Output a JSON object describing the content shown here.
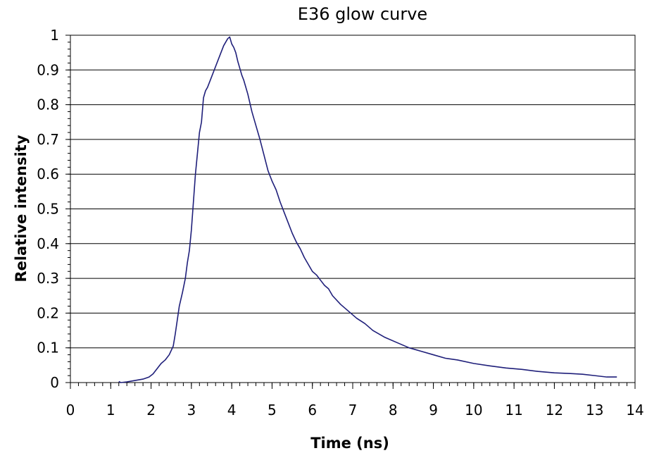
{
  "chart_data": {
    "type": "line",
    "title": "E36 glow curve",
    "xlabel": "Time (ns)",
    "ylabel": "Relative intensity",
    "xlim": [
      0,
      14
    ],
    "ylim": [
      0,
      1
    ],
    "x_ticks": [
      0,
      1,
      2,
      3,
      4,
      5,
      6,
      7,
      8,
      9,
      10,
      11,
      12,
      13,
      14
    ],
    "y_ticks": [
      0,
      0.1,
      0.2,
      0.3,
      0.4,
      0.5,
      0.6,
      0.7,
      0.8,
      0.9,
      1
    ],
    "grid": "horizontal",
    "legend": "none",
    "line_color": "#1f1f7a",
    "series": [
      {
        "x": [
          1.2,
          1.25,
          1.4,
          1.6,
          1.8,
          1.95,
          2.05,
          2.15,
          2.25,
          2.35,
          2.45,
          2.55,
          2.6,
          2.65,
          2.7,
          2.78,
          2.85,
          2.9,
          2.95,
          3.0,
          3.05,
          3.1,
          3.15,
          3.2,
          3.25,
          3.3,
          3.35,
          3.4,
          3.5,
          3.6,
          3.7,
          3.8,
          3.9,
          3.95,
          4.0,
          4.05,
          4.1,
          4.15,
          4.2,
          4.25,
          4.3,
          4.4,
          4.5,
          4.6,
          4.7,
          4.8,
          4.9,
          5.0,
          5.1,
          5.2,
          5.3,
          5.4,
          5.5,
          5.6,
          5.7,
          5.8,
          5.9,
          6.0,
          6.1,
          6.2,
          6.3,
          6.4,
          6.5,
          6.7,
          6.9,
          7.1,
          7.3,
          7.5,
          7.8,
          8.1,
          8.4,
          8.7,
          9.0,
          9.3,
          9.6,
          10.0,
          10.4,
          10.8,
          11.2,
          11.6,
          12.0,
          12.4,
          12.7,
          13.0,
          13.3,
          13.55
        ],
        "y": [
          0.003,
          0.0,
          0.002,
          0.006,
          0.01,
          0.016,
          0.025,
          0.04,
          0.055,
          0.065,
          0.08,
          0.105,
          0.14,
          0.18,
          0.22,
          0.26,
          0.3,
          0.345,
          0.38,
          0.44,
          0.52,
          0.6,
          0.66,
          0.72,
          0.75,
          0.82,
          0.84,
          0.85,
          0.88,
          0.91,
          0.94,
          0.97,
          0.99,
          0.995,
          0.975,
          0.965,
          0.95,
          0.925,
          0.905,
          0.885,
          0.87,
          0.83,
          0.78,
          0.74,
          0.7,
          0.655,
          0.61,
          0.58,
          0.555,
          0.52,
          0.49,
          0.46,
          0.43,
          0.405,
          0.385,
          0.36,
          0.34,
          0.32,
          0.31,
          0.295,
          0.28,
          0.27,
          0.25,
          0.225,
          0.205,
          0.185,
          0.17,
          0.15,
          0.13,
          0.115,
          0.1,
          0.09,
          0.08,
          0.07,
          0.065,
          0.055,
          0.048,
          0.042,
          0.038,
          0.032,
          0.028,
          0.026,
          0.024,
          0.02,
          0.016,
          0.016
        ]
      }
    ]
  }
}
